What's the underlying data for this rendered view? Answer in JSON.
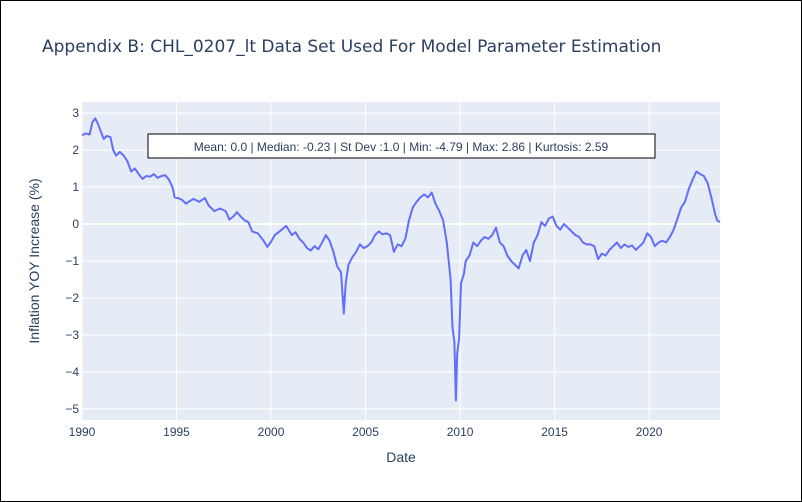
{
  "chart_data": {
    "type": "line",
    "title": "Appendix B: CHL_0207_lt Data Set Used For Model Parameter Estimation",
    "xlabel": "Date",
    "ylabel": "Inflation YOY Increase (%)",
    "xlim": [
      1990.0,
      2023.75
    ],
    "ylim": [
      -5.3,
      3.3
    ],
    "x_ticks": [
      1990,
      1995,
      2000,
      2005,
      2010,
      2015,
      2020
    ],
    "x_tick_labels": [
      "1990",
      "1995",
      "2000",
      "2005",
      "2010",
      "2015",
      "2020"
    ],
    "y_ticks": [
      3,
      2,
      1,
      0,
      -1,
      -2,
      -3,
      -4,
      -5
    ],
    "y_tick_labels": [
      "3",
      "2",
      "1",
      "0",
      "−1",
      "−2",
      "−3",
      "−4",
      "−5"
    ],
    "grid": true,
    "colors": {
      "plot_bg": "#e5ecf6",
      "grid": "#ffffff",
      "line": "#636efa",
      "text": "#2a3f5f"
    },
    "annotation": "Mean: 0.0 | Median: -0.23 | St Dev :1.0 | Min: -4.79 | Max: 2.86 | Kurtosis: 2.59",
    "series": [
      {
        "points": [
          [
            1990.0,
            2.4
          ],
          [
            1990.2,
            2.45
          ],
          [
            1990.4,
            2.42
          ],
          [
            1990.55,
            2.75
          ],
          [
            1990.7,
            2.86
          ],
          [
            1990.85,
            2.7
          ],
          [
            1991.0,
            2.5
          ],
          [
            1991.15,
            2.3
          ],
          [
            1991.3,
            2.38
          ],
          [
            1991.5,
            2.35
          ],
          [
            1991.65,
            2.0
          ],
          [
            1991.8,
            1.85
          ],
          [
            1992.0,
            1.95
          ],
          [
            1992.2,
            1.85
          ],
          [
            1992.4,
            1.7
          ],
          [
            1992.6,
            1.42
          ],
          [
            1992.8,
            1.5
          ],
          [
            1993.0,
            1.35
          ],
          [
            1993.2,
            1.22
          ],
          [
            1993.4,
            1.3
          ],
          [
            1993.6,
            1.28
          ],
          [
            1993.8,
            1.35
          ],
          [
            1994.0,
            1.25
          ],
          [
            1994.2,
            1.3
          ],
          [
            1994.4,
            1.32
          ],
          [
            1994.6,
            1.2
          ],
          [
            1994.8,
            0.98
          ],
          [
            1994.9,
            0.72
          ],
          [
            1995.1,
            0.7
          ],
          [
            1995.3,
            0.65
          ],
          [
            1995.5,
            0.55
          ],
          [
            1995.7,
            0.62
          ],
          [
            1995.9,
            0.68
          ],
          [
            1996.2,
            0.6
          ],
          [
            1996.5,
            0.7
          ],
          [
            1996.7,
            0.5
          ],
          [
            1997.0,
            0.35
          ],
          [
            1997.3,
            0.42
          ],
          [
            1997.6,
            0.35
          ],
          [
            1997.8,
            0.12
          ],
          [
            1998.0,
            0.2
          ],
          [
            1998.2,
            0.32
          ],
          [
            1998.4,
            0.2
          ],
          [
            1998.6,
            0.1
          ],
          [
            1998.8,
            0.05
          ],
          [
            1999.0,
            -0.2
          ],
          [
            1999.3,
            -0.25
          ],
          [
            1999.6,
            -0.45
          ],
          [
            1999.8,
            -0.62
          ],
          [
            2000.0,
            -0.48
          ],
          [
            2000.2,
            -0.3
          ],
          [
            2000.5,
            -0.18
          ],
          [
            2000.8,
            -0.05
          ],
          [
            2001.1,
            -0.3
          ],
          [
            2001.3,
            -0.22
          ],
          [
            2001.5,
            -0.4
          ],
          [
            2001.7,
            -0.5
          ],
          [
            2001.9,
            -0.65
          ],
          [
            2002.1,
            -0.72
          ],
          [
            2002.3,
            -0.6
          ],
          [
            2002.5,
            -0.68
          ],
          [
            2002.7,
            -0.5
          ],
          [
            2002.9,
            -0.3
          ],
          [
            2003.1,
            -0.45
          ],
          [
            2003.3,
            -0.75
          ],
          [
            2003.5,
            -1.15
          ],
          [
            2003.7,
            -1.3
          ],
          [
            2003.85,
            -2.42
          ],
          [
            2003.95,
            -1.6
          ],
          [
            2004.1,
            -1.1
          ],
          [
            2004.3,
            -0.9
          ],
          [
            2004.5,
            -0.75
          ],
          [
            2004.7,
            -0.55
          ],
          [
            2004.9,
            -0.65
          ],
          [
            2005.1,
            -0.6
          ],
          [
            2005.3,
            -0.5
          ],
          [
            2005.5,
            -0.3
          ],
          [
            2005.7,
            -0.2
          ],
          [
            2005.9,
            -0.28
          ],
          [
            2006.1,
            -0.25
          ],
          [
            2006.3,
            -0.3
          ],
          [
            2006.5,
            -0.75
          ],
          [
            2006.7,
            -0.55
          ],
          [
            2006.9,
            -0.6
          ],
          [
            2007.1,
            -0.4
          ],
          [
            2007.3,
            0.1
          ],
          [
            2007.5,
            0.45
          ],
          [
            2007.7,
            0.6
          ],
          [
            2007.9,
            0.72
          ],
          [
            2008.1,
            0.8
          ],
          [
            2008.3,
            0.72
          ],
          [
            2008.5,
            0.85
          ],
          [
            2008.7,
            0.55
          ],
          [
            2008.9,
            0.35
          ],
          [
            2009.1,
            0.1
          ],
          [
            2009.3,
            -0.5
          ],
          [
            2009.5,
            -1.5
          ],
          [
            2009.6,
            -2.8
          ],
          [
            2009.7,
            -3.2
          ],
          [
            2009.78,
            -4.77
          ],
          [
            2009.85,
            -3.5
          ],
          [
            2009.95,
            -3.1
          ],
          [
            2010.05,
            -1.6
          ],
          [
            2010.2,
            -1.35
          ],
          [
            2010.3,
            -1.0
          ],
          [
            2010.5,
            -0.85
          ],
          [
            2010.7,
            -0.5
          ],
          [
            2010.9,
            -0.6
          ],
          [
            2011.1,
            -0.45
          ],
          [
            2011.3,
            -0.35
          ],
          [
            2011.5,
            -0.4
          ],
          [
            2011.7,
            -0.3
          ],
          [
            2011.9,
            -0.1
          ],
          [
            2012.1,
            -0.5
          ],
          [
            2012.3,
            -0.6
          ],
          [
            2012.5,
            -0.85
          ],
          [
            2012.7,
            -1.0
          ],
          [
            2012.9,
            -1.1
          ],
          [
            2013.1,
            -1.2
          ],
          [
            2013.3,
            -0.85
          ],
          [
            2013.5,
            -0.7
          ],
          [
            2013.7,
            -1.0
          ],
          [
            2013.9,
            -0.5
          ],
          [
            2014.1,
            -0.3
          ],
          [
            2014.3,
            0.05
          ],
          [
            2014.5,
            -0.05
          ],
          [
            2014.7,
            0.15
          ],
          [
            2014.9,
            0.2
          ],
          [
            2015.1,
            -0.05
          ],
          [
            2015.3,
            -0.15
          ],
          [
            2015.5,
            0.0
          ],
          [
            2015.7,
            -0.1
          ],
          [
            2015.9,
            -0.2
          ],
          [
            2016.1,
            -0.3
          ],
          [
            2016.3,
            -0.35
          ],
          [
            2016.5,
            -0.5
          ],
          [
            2016.7,
            -0.55
          ],
          [
            2016.9,
            -0.55
          ],
          [
            2017.1,
            -0.6
          ],
          [
            2017.3,
            -0.95
          ],
          [
            2017.5,
            -0.8
          ],
          [
            2017.7,
            -0.85
          ],
          [
            2017.9,
            -0.7
          ],
          [
            2018.1,
            -0.6
          ],
          [
            2018.3,
            -0.5
          ],
          [
            2018.5,
            -0.65
          ],
          [
            2018.7,
            -0.55
          ],
          [
            2018.9,
            -0.62
          ],
          [
            2019.1,
            -0.58
          ],
          [
            2019.3,
            -0.7
          ],
          [
            2019.5,
            -0.6
          ],
          [
            2019.7,
            -0.5
          ],
          [
            2019.9,
            -0.25
          ],
          [
            2020.1,
            -0.35
          ],
          [
            2020.3,
            -0.6
          ],
          [
            2020.5,
            -0.5
          ],
          [
            2020.7,
            -0.45
          ],
          [
            2020.9,
            -0.5
          ],
          [
            2021.1,
            -0.35
          ],
          [
            2021.3,
            -0.15
          ],
          [
            2021.5,
            0.15
          ],
          [
            2021.7,
            0.45
          ],
          [
            2021.9,
            0.6
          ],
          [
            2022.1,
            0.95
          ],
          [
            2022.3,
            1.2
          ],
          [
            2022.5,
            1.42
          ],
          [
            2022.7,
            1.35
          ],
          [
            2022.9,
            1.3
          ],
          [
            2023.1,
            1.1
          ],
          [
            2023.3,
            0.7
          ],
          [
            2023.5,
            0.25
          ],
          [
            2023.6,
            0.1
          ],
          [
            2023.75,
            0.05
          ]
        ]
      }
    ]
  }
}
